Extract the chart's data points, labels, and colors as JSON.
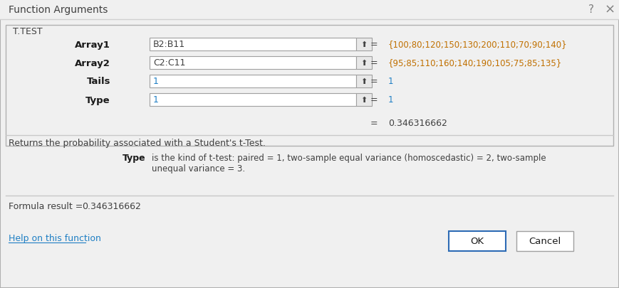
{
  "title": "Function Arguments",
  "bg_color": "#f0f0f0",
  "white": "#ffffff",
  "ttest_label": "T.TEST",
  "fields": [
    {
      "label": "Array1",
      "input": "B2:B11",
      "value": "{100;80;120;150;130;200;110;70;90;140}"
    },
    {
      "label": "Array2",
      "input": "C2:C11",
      "value": "{95;85;110;160;140;190;105;75;85;135}"
    },
    {
      "label": "Tails",
      "input": "1",
      "value": "1"
    },
    {
      "label": "Type",
      "input": "1",
      "value": "1"
    }
  ],
  "result_value": "0.346316662",
  "description": "Returns the probability associated with a Student's t-Test.",
  "type_label": "Type",
  "type_desc_line1": "is the kind of t-test: paired = 1, two-sample equal variance (homoscedastic) = 2, two-sample",
  "type_desc_line2": "unequal variance = 3.",
  "formula_label": "Formula result =",
  "formula_value": "0.346316662",
  "help_text": "Help on this function",
  "ok_text": "OK",
  "cancel_text": "Cancel",
  "value_color": "#c07000",
  "blue_value_color": "#1f7fc4",
  "help_link_color": "#1f7fc4",
  "button_border": "#2d6bb5"
}
